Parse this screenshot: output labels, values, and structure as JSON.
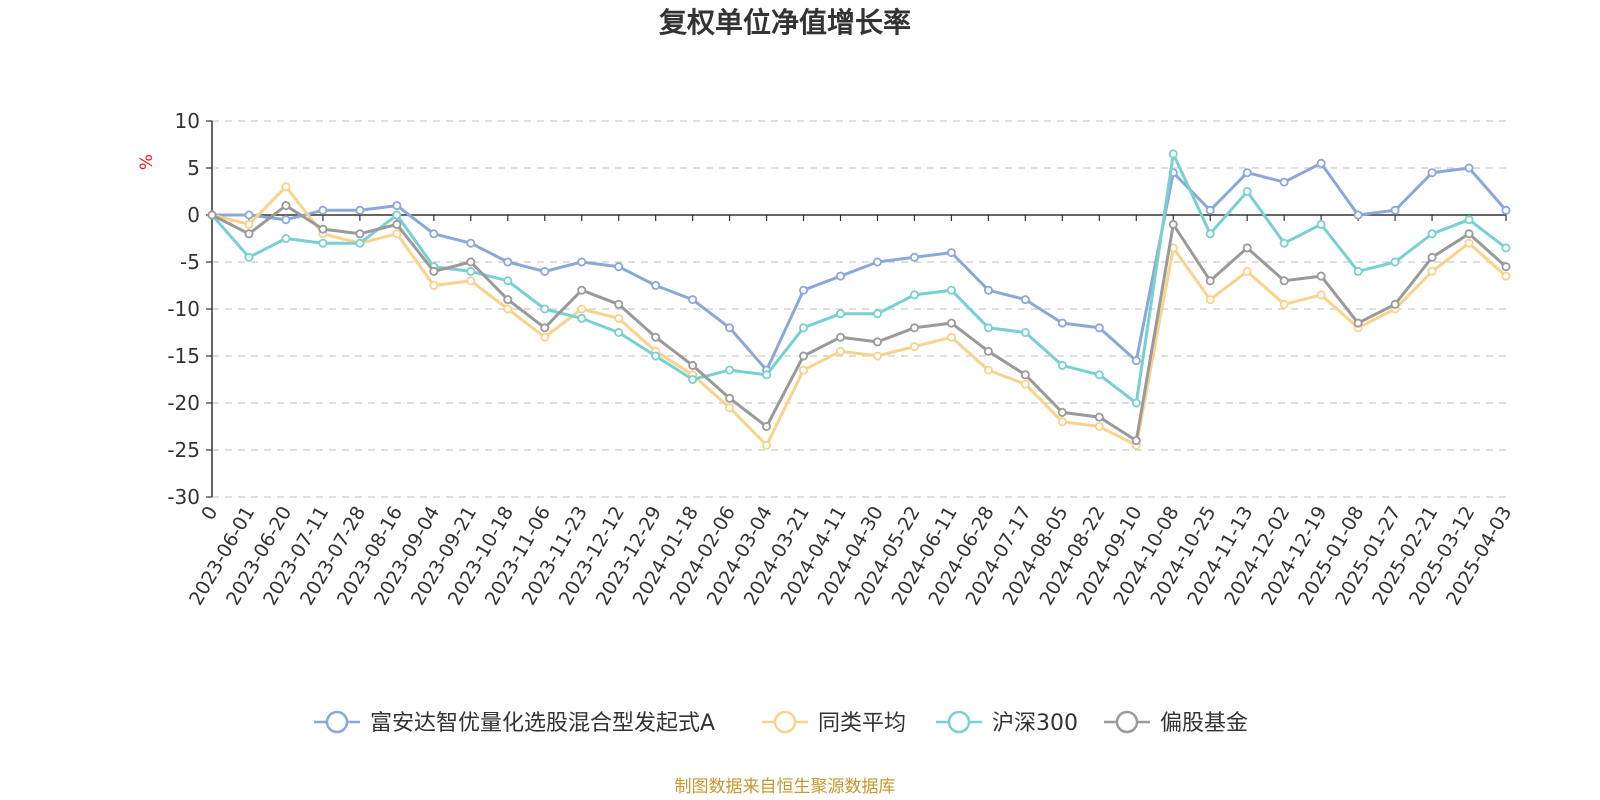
{
  "chart_data": {
    "type": "line",
    "title": "复权单位净值增长率",
    "ylabel": "%",
    "ylim": [
      -30,
      10
    ],
    "yticks": [
      10,
      5,
      0,
      -5,
      -10,
      -15,
      -20,
      -25,
      -30
    ],
    "grid": true,
    "legend_position": "bottom",
    "categories": [
      "0",
      "2023-06-01",
      "2023-06-20",
      "2023-07-11",
      "2023-07-28",
      "2023-08-16",
      "2023-09-04",
      "2023-09-21",
      "2023-10-18",
      "2023-11-06",
      "2023-11-23",
      "2023-12-12",
      "2023-12-29",
      "2024-01-18",
      "2024-02-06",
      "2024-03-04",
      "2024-03-21",
      "2024-04-11",
      "2024-04-30",
      "2024-05-22",
      "2024-06-11",
      "2024-06-28",
      "2024-07-17",
      "2024-08-05",
      "2024-08-22",
      "2024-09-10",
      "2024-10-08",
      "2024-10-25",
      "2024-11-13",
      "2024-12-02",
      "2024-12-19",
      "2025-01-08",
      "2025-01-27",
      "2025-02-21",
      "2025-03-12",
      "2025-04-03"
    ],
    "series": [
      {
        "name": "富安达智优量化选股混合型发起式A",
        "color": "#8aa8d8",
        "values": [
          0,
          0,
          -0.5,
          0.5,
          0.5,
          1.0,
          -2.0,
          -3.0,
          -5.0,
          -6.0,
          -5.0,
          -5.5,
          -7.5,
          -9.0,
          -12.0,
          -16.5,
          -8.0,
          -6.5,
          -5.0,
          -4.5,
          -4.0,
          -8.0,
          -9.0,
          -11.5,
          -12.0,
          -15.5,
          4.5,
          0.5,
          4.5,
          3.5,
          5.5,
          0.0,
          0.5,
          4.5,
          5.0,
          0.5
        ]
      },
      {
        "name": "同类平均",
        "color": "#f9d38c",
        "values": [
          0,
          -1.0,
          3.0,
          -2.0,
          -3.0,
          -2.0,
          -7.5,
          -7.0,
          -10.0,
          -13.0,
          -10.0,
          -11.0,
          -14.5,
          -17.0,
          -20.5,
          -24.5,
          -16.5,
          -14.5,
          -15.0,
          -14.0,
          -13.0,
          -16.5,
          -18.0,
          -22.0,
          -22.5,
          -24.5,
          -3.5,
          -9.0,
          -6.0,
          -9.5,
          -8.5,
          -12.0,
          -10.0,
          -6.0,
          -3.0,
          -6.5
        ]
      },
      {
        "name": "沪深300",
        "color": "#79d0d0",
        "values": [
          0,
          -4.5,
          -2.5,
          -3.0,
          -3.0,
          0.0,
          -5.5,
          -6.0,
          -7.0,
          -10.0,
          -11.0,
          -12.5,
          -15.0,
          -17.5,
          -16.5,
          -17.0,
          -12.0,
          -10.5,
          -10.5,
          -8.5,
          -8.0,
          -12.0,
          -12.5,
          -16.0,
          -17.0,
          -20.0,
          6.5,
          -2.0,
          2.5,
          -3.0,
          -1.0,
          -6.0,
          -5.0,
          -2.0,
          -0.5,
          -3.5
        ]
      },
      {
        "name": "偏股基金",
        "color": "#9a9a9a",
        "values": [
          0,
          -2.0,
          1.0,
          -1.5,
          -2.0,
          -1.0,
          -6.0,
          -5.0,
          -9.0,
          -12.0,
          -8.0,
          -9.5,
          -13.0,
          -16.0,
          -19.5,
          -22.5,
          -15.0,
          -13.0,
          -13.5,
          -12.0,
          -11.5,
          -14.5,
          -17.0,
          -21.0,
          -21.5,
          -24.0,
          -1.0,
          -7.0,
          -3.5,
          -7.0,
          -6.5,
          -11.5,
          -9.5,
          -4.5,
          -2.0,
          -5.5
        ]
      }
    ]
  },
  "footer": {
    "source": "制图数据来自恒生聚源数据库"
  }
}
